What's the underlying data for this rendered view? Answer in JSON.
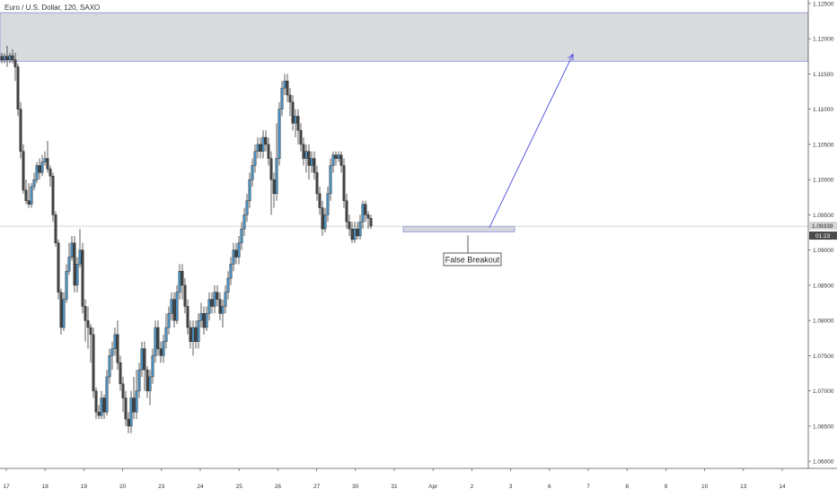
{
  "header": {
    "symbol": "Euro / U.S. Dollar, 120, SAXO"
  },
  "chart_data": {
    "type": "candlestick",
    "price_axis": {
      "ticks": [
        "1.12500",
        "1.12000",
        "1.11500",
        "1.11000",
        "1.10500",
        "1.10000",
        "1.09500",
        "1.09000",
        "1.08500",
        "1.08000",
        "1.07500",
        "1.07000",
        "1.06500",
        "1.06000"
      ],
      "range": [
        1.059,
        1.1255
      ],
      "current_price": "1.09339",
      "countdown": "01:23"
    },
    "time_axis": {
      "ticks": [
        "17",
        "18",
        "19",
        "20",
        "23",
        "24",
        "25",
        "26",
        "27",
        "30",
        "31",
        "Apr",
        "2",
        "3",
        "6",
        "7",
        "8",
        "9",
        "10",
        "13",
        "14"
      ]
    },
    "colors": {
      "up": "#4a8ebf",
      "down": "#444444",
      "wick": "#333333",
      "zone": "#d9dade",
      "arrow": "#4a4adf"
    },
    "resistance_zone": {
      "from": 1.1168,
      "to": 1.1237
    },
    "support_zone": {
      "from": 1.0924,
      "to": 1.0931
    },
    "horizontal_line": 1.09339,
    "annotation": {
      "text": "False Breakout"
    },
    "candles": [
      [
        1.1175,
        1.117,
        1.118,
        1.1165
      ],
      [
        1.117,
        1.1175,
        1.1179,
        1.1165
      ],
      [
        1.1175,
        1.117,
        1.119,
        1.116
      ],
      [
        1.117,
        1.1176,
        1.118,
        1.1165
      ],
      [
        1.1176,
        1.117,
        1.1185,
        1.1165
      ],
      [
        1.117,
        1.116,
        1.118,
        1.114
      ],
      [
        1.116,
        1.11,
        1.1165,
        1.109
      ],
      [
        1.11,
        1.104,
        1.111,
        1.103
      ],
      [
        1.104,
        1.0985,
        1.105,
        1.098
      ],
      [
        1.0985,
        1.097,
        1.1,
        1.0965
      ],
      [
        1.097,
        1.0965,
        1.0995,
        1.096
      ],
      [
        1.0965,
        1.099,
        1.0995,
        1.096
      ],
      [
        1.099,
        1.1,
        1.101,
        1.0985
      ],
      [
        1.1,
        1.102,
        1.1025,
        1.0995
      ],
      [
        1.102,
        1.101,
        1.103,
        1.1
      ],
      [
        1.101,
        1.1025,
        1.1035,
        1.1005
      ],
      [
        1.1025,
        1.103,
        1.104,
        1.102
      ],
      [
        1.103,
        1.1015,
        1.1055,
        1.101
      ],
      [
        1.1015,
        1.1005,
        1.102,
        1.099
      ],
      [
        1.1005,
        1.095,
        1.101,
        1.094
      ],
      [
        1.095,
        1.091,
        1.0955,
        1.0905
      ],
      [
        1.091,
        1.084,
        1.0915,
        1.083
      ],
      [
        1.084,
        1.079,
        1.0845,
        1.078
      ],
      [
        1.079,
        1.083,
        1.084,
        1.0785
      ],
      [
        1.083,
        1.087,
        1.088,
        1.0825
      ],
      [
        1.087,
        1.089,
        1.091,
        1.0865
      ],
      [
        1.089,
        1.091,
        1.092,
        1.0885
      ],
      [
        1.091,
        1.085,
        1.092,
        1.084
      ],
      [
        1.085,
        1.088,
        1.089,
        1.084
      ],
      [
        1.088,
        1.09,
        1.093,
        1.0875
      ],
      [
        1.09,
        1.082,
        1.091,
        1.081
      ],
      [
        1.082,
        1.08,
        1.083,
        1.077
      ],
      [
        1.08,
        1.079,
        1.082,
        1.076
      ],
      [
        1.079,
        1.078,
        1.0795,
        1.074
      ],
      [
        1.078,
        1.07,
        1.079,
        1.069
      ],
      [
        1.07,
        1.067,
        1.0705,
        1.066
      ],
      [
        1.067,
        1.0665,
        1.068,
        1.066
      ],
      [
        1.0665,
        1.069,
        1.07,
        1.066
      ],
      [
        1.069,
        1.067,
        1.0695,
        1.066
      ],
      [
        1.067,
        1.072,
        1.073,
        1.0665
      ],
      [
        1.072,
        1.075,
        1.076,
        1.071
      ],
      [
        1.075,
        1.076,
        1.077,
        1.073
      ],
      [
        1.076,
        1.078,
        1.079,
        1.075
      ],
      [
        1.078,
        1.074,
        1.08,
        1.073
      ],
      [
        1.074,
        1.071,
        1.075,
        1.07
      ],
      [
        1.071,
        1.069,
        1.072,
        1.067
      ],
      [
        1.069,
        1.066,
        1.07,
        1.065
      ],
      [
        1.066,
        1.065,
        1.067,
        1.064
      ],
      [
        1.065,
        1.069,
        1.07,
        1.064
      ],
      [
        1.069,
        1.067,
        1.072,
        1.066
      ],
      [
        1.067,
        1.07,
        1.073,
        1.066
      ],
      [
        1.07,
        1.073,
        1.074,
        1.069
      ],
      [
        1.073,
        1.076,
        1.077,
        1.072
      ],
      [
        1.076,
        1.073,
        1.077,
        1.07
      ],
      [
        1.073,
        1.07,
        1.0735,
        1.069
      ],
      [
        1.07,
        1.072,
        1.073,
        1.068
      ],
      [
        1.072,
        1.075,
        1.076,
        1.071
      ],
      [
        1.075,
        1.079,
        1.08,
        1.074
      ],
      [
        1.079,
        1.076,
        1.08,
        1.075
      ],
      [
        1.076,
        1.075,
        1.077,
        1.074
      ],
      [
        1.075,
        1.077,
        1.078,
        1.074
      ],
      [
        1.077,
        1.079,
        1.081,
        1.076
      ],
      [
        1.079,
        1.081,
        1.082,
        1.078
      ],
      [
        1.081,
        1.083,
        1.084,
        1.08
      ],
      [
        1.083,
        1.08,
        1.084,
        1.079
      ],
      [
        1.08,
        1.084,
        1.085,
        1.0795
      ],
      [
        1.084,
        1.087,
        1.088,
        1.083
      ],
      [
        1.087,
        1.085,
        1.088,
        1.083
      ],
      [
        1.085,
        1.082,
        1.086,
        1.081
      ],
      [
        1.082,
        1.079,
        1.083,
        1.078
      ],
      [
        1.079,
        1.077,
        1.08,
        1.076
      ],
      [
        1.077,
        1.079,
        1.08,
        1.075
      ],
      [
        1.079,
        1.077,
        1.08,
        1.076
      ],
      [
        1.077,
        1.08,
        1.081,
        1.076
      ],
      [
        1.08,
        1.081,
        1.0825,
        1.079
      ],
      [
        1.081,
        1.079,
        1.082,
        1.078
      ],
      [
        1.079,
        1.081,
        1.082,
        1.0785
      ],
      [
        1.081,
        1.083,
        1.084,
        1.08
      ],
      [
        1.083,
        1.082,
        1.084,
        1.081
      ],
      [
        1.082,
        1.084,
        1.085,
        1.081
      ],
      [
        1.084,
        1.083,
        1.085,
        1.082
      ],
      [
        1.083,
        1.081,
        1.084,
        1.08
      ],
      [
        1.081,
        1.082,
        1.083,
        1.079
      ],
      [
        1.082,
        1.084,
        1.085,
        1.081
      ],
      [
        1.084,
        1.086,
        1.087,
        1.083
      ],
      [
        1.086,
        1.088,
        1.089,
        1.085
      ],
      [
        1.088,
        1.09,
        1.091,
        1.087
      ],
      [
        1.09,
        1.089,
        1.091,
        1.088
      ],
      [
        1.089,
        1.091,
        1.092,
        1.088
      ],
      [
        1.091,
        1.093,
        1.094,
        1.09
      ],
      [
        1.093,
        1.095,
        1.096,
        1.092
      ],
      [
        1.095,
        1.097,
        1.098,
        1.094
      ],
      [
        1.097,
        1.1,
        1.101,
        1.096
      ],
      [
        1.1,
        1.102,
        1.103,
        1.099
      ],
      [
        1.102,
        1.104,
        1.105,
        1.101
      ],
      [
        1.104,
        1.105,
        1.106,
        1.103
      ],
      [
        1.105,
        1.104,
        1.106,
        1.103
      ],
      [
        1.104,
        1.106,
        1.107,
        1.103
      ],
      [
        1.106,
        1.105,
        1.107,
        1.104
      ],
      [
        1.105,
        1.103,
        1.106,
        1.102
      ],
      [
        1.103,
        1.1,
        1.104,
        1.095
      ],
      [
        1.1,
        1.098,
        1.101,
        1.096
      ],
      [
        1.098,
        1.103,
        1.108,
        1.097
      ],
      [
        1.103,
        1.11,
        1.111,
        1.102
      ],
      [
        1.11,
        1.113,
        1.114,
        1.109
      ],
      [
        1.113,
        1.114,
        1.115,
        1.112
      ],
      [
        1.114,
        1.112,
        1.115,
        1.111
      ],
      [
        1.112,
        1.111,
        1.113,
        1.109
      ],
      [
        1.111,
        1.108,
        1.112,
        1.107
      ],
      [
        1.108,
        1.109,
        1.11,
        1.106
      ],
      [
        1.109,
        1.107,
        1.11,
        1.105
      ],
      [
        1.107,
        1.105,
        1.108,
        1.104
      ],
      [
        1.105,
        1.103,
        1.106,
        1.102
      ],
      [
        1.103,
        1.104,
        1.105,
        1.101
      ],
      [
        1.104,
        1.102,
        1.105,
        1.1
      ],
      [
        1.102,
        1.103,
        1.104,
        1.101
      ],
      [
        1.103,
        1.101,
        1.104,
        1.1
      ],
      [
        1.101,
        1.098,
        1.102,
        1.097
      ],
      [
        1.098,
        1.096,
        1.099,
        1.095
      ],
      [
        1.096,
        1.093,
        1.097,
        1.092
      ],
      [
        1.093,
        1.095,
        1.096,
        1.0925
      ],
      [
        1.095,
        1.098,
        1.099,
        1.094
      ],
      [
        1.098,
        1.102,
        1.103,
        1.097
      ],
      [
        1.102,
        1.1035,
        1.104,
        1.101
      ],
      [
        1.1035,
        1.103,
        1.104,
        1.102
      ],
      [
        1.103,
        1.1035,
        1.104,
        1.1025
      ],
      [
        1.1035,
        1.102,
        1.104,
        1.101
      ],
      [
        1.102,
        1.097,
        1.103,
        1.096
      ],
      [
        1.097,
        1.094,
        1.098,
        1.093
      ],
      [
        1.094,
        1.093,
        1.095,
        1.092
      ],
      [
        1.093,
        1.0915,
        1.094,
        1.091
      ],
      [
        1.0915,
        1.093,
        1.094,
        1.091
      ],
      [
        1.093,
        1.092,
        1.094,
        1.0915
      ],
      [
        1.092,
        1.094,
        1.095,
        1.0915
      ],
      [
        1.094,
        1.0965,
        1.097,
        1.093
      ],
      [
        1.0965,
        1.095,
        1.097,
        1.094
      ],
      [
        1.095,
        1.0945,
        1.0955,
        1.093
      ],
      [
        1.0945,
        1.0934,
        1.095,
        1.093
      ]
    ],
    "prediction_arrow": {
      "from_bar": 138,
      "from_price": 1.0932,
      "to_bar": 160,
      "to_price": 1.1178
    }
  }
}
